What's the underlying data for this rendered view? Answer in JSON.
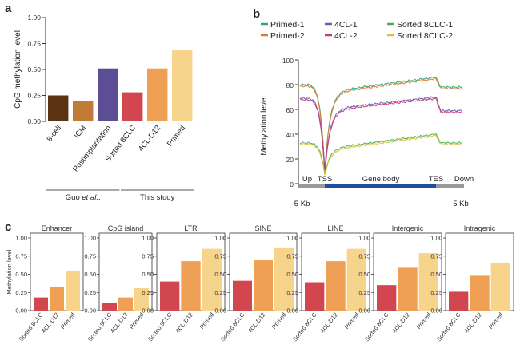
{
  "panels": {
    "a": "a",
    "b": "b",
    "c": "c"
  },
  "chart_data": [
    {
      "id": "a",
      "type": "bar",
      "ylabel": "CpG methylation level",
      "ylim": [
        0,
        1.0
      ],
      "yticks": [
        "0.00",
        "0.25",
        "0.50",
        "0.75",
        "1.00"
      ],
      "categories": [
        "8-cell",
        "ICM",
        "Postimplantation",
        "Sorted 8CLC",
        "4CL-D12",
        "Primed"
      ],
      "values": [
        0.25,
        0.2,
        0.51,
        0.28,
        0.51,
        0.69
      ],
      "colors": [
        "#5a3214",
        "#c27a37",
        "#5c4e94",
        "#d2464f",
        "#f0a055",
        "#f6d48c"
      ],
      "groups": [
        {
          "label": "Guo et al.",
          "italic": "et al.",
          "prefix": "Guo ",
          "suffix": ".",
          "from": 0,
          "to": 2
        },
        {
          "label": "This study",
          "from": 3,
          "to": 5
        }
      ]
    },
    {
      "id": "b",
      "type": "line",
      "ylabel": "Methylation level",
      "ylim": [
        0,
        100
      ],
      "yticks": [
        "0",
        "20",
        "40",
        "60",
        "80",
        "100"
      ],
      "legend": [
        {
          "name": "Primed-1",
          "color": "#2aa876"
        },
        {
          "name": "4CL-1",
          "color": "#6f5bb2"
        },
        {
          "name": "Sorted 8CLC-1",
          "color": "#4bb04a"
        },
        {
          "name": "Primed-2",
          "color": "#e07a2a"
        },
        {
          "name": "4CL-2",
          "color": "#c23b7d"
        },
        {
          "name": "Sorted 8CLC-2",
          "color": "#d8c43a"
        }
      ],
      "regions": {
        "up": "Up",
        "tss": "TSS",
        "body": "Gene body",
        "tes": "TES",
        "down": "Down"
      },
      "xlabels": {
        "left": "-5 Kb",
        "right": "5 Kb"
      },
      "profiles": [
        {
          "name": "Primed",
          "up": 80,
          "tss_min": 10,
          "body_start": 74,
          "body_end": 86,
          "down": 78,
          "colors": [
            "#2aa876",
            "#e07a2a"
          ]
        },
        {
          "name": "4CL",
          "up": 69,
          "tss_min": 9,
          "body_start": 60,
          "body_end": 70,
          "down": 59,
          "colors": [
            "#6f5bb2",
            "#c23b7d"
          ]
        },
        {
          "name": "Sorted 8CLC",
          "up": 33,
          "tss_min": 8,
          "body_start": 28,
          "body_end": 40,
          "down": 33,
          "colors": [
            "#4bb04a",
            "#d8c43a"
          ]
        }
      ]
    },
    {
      "id": "c",
      "type": "bar",
      "ylabel": "Methylation level",
      "ylim": [
        0,
        1.0
      ],
      "yticks": [
        "0.00",
        "0.25",
        "0.50",
        "0.75",
        "1.00"
      ],
      "categories": [
        "Sorted 8CLC",
        "4CL-D12",
        "Primed"
      ],
      "colors": [
        "#d2464f",
        "#f0a055",
        "#f6d48c"
      ],
      "subplots": [
        {
          "title": "Enhancer",
          "values": [
            0.18,
            0.33,
            0.55
          ]
        },
        {
          "title": "CpG island",
          "values": [
            0.1,
            0.18,
            0.31
          ]
        },
        {
          "title": "LTR",
          "values": [
            0.4,
            0.68,
            0.85
          ]
        },
        {
          "title": "SINE",
          "values": [
            0.41,
            0.7,
            0.87
          ]
        },
        {
          "title": "LINE",
          "values": [
            0.39,
            0.68,
            0.85
          ]
        },
        {
          "title": "Intergenic",
          "values": [
            0.35,
            0.6,
            0.79
          ]
        },
        {
          "title": "Intragenic",
          "values": [
            0.27,
            0.49,
            0.66
          ]
        }
      ]
    }
  ]
}
